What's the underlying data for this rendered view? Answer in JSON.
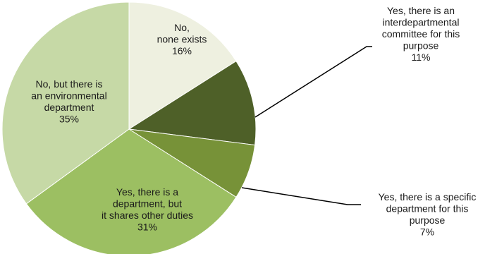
{
  "chart_data": {
    "type": "pie",
    "title": "",
    "slices": [
      {
        "label_lines": [
          "No,",
          "none exists"
        ],
        "value_label": "16%",
        "value": 16,
        "color": "#eef0e0"
      },
      {
        "label_lines": [
          "Yes, there is an",
          "interdepartmental",
          "committee for this",
          "purpose"
        ],
        "value_label": "11%",
        "value": 11,
        "color": "#4e6028"
      },
      {
        "label_lines": [
          "Yes, there is a specific",
          "department for this",
          "purpose"
        ],
        "value_label": "7%",
        "value": 7,
        "color": "#779238"
      },
      {
        "label_lines": [
          "Yes, there is a",
          "department, but",
          "it shares other duties"
        ],
        "value_label": "31%",
        "value": 31,
        "color": "#9cbf62"
      },
      {
        "label_lines": [
          "No, but there is",
          "an environmental",
          "department"
        ],
        "value_label": "35%",
        "value": 35,
        "color": "#c6d9a6"
      }
    ]
  }
}
